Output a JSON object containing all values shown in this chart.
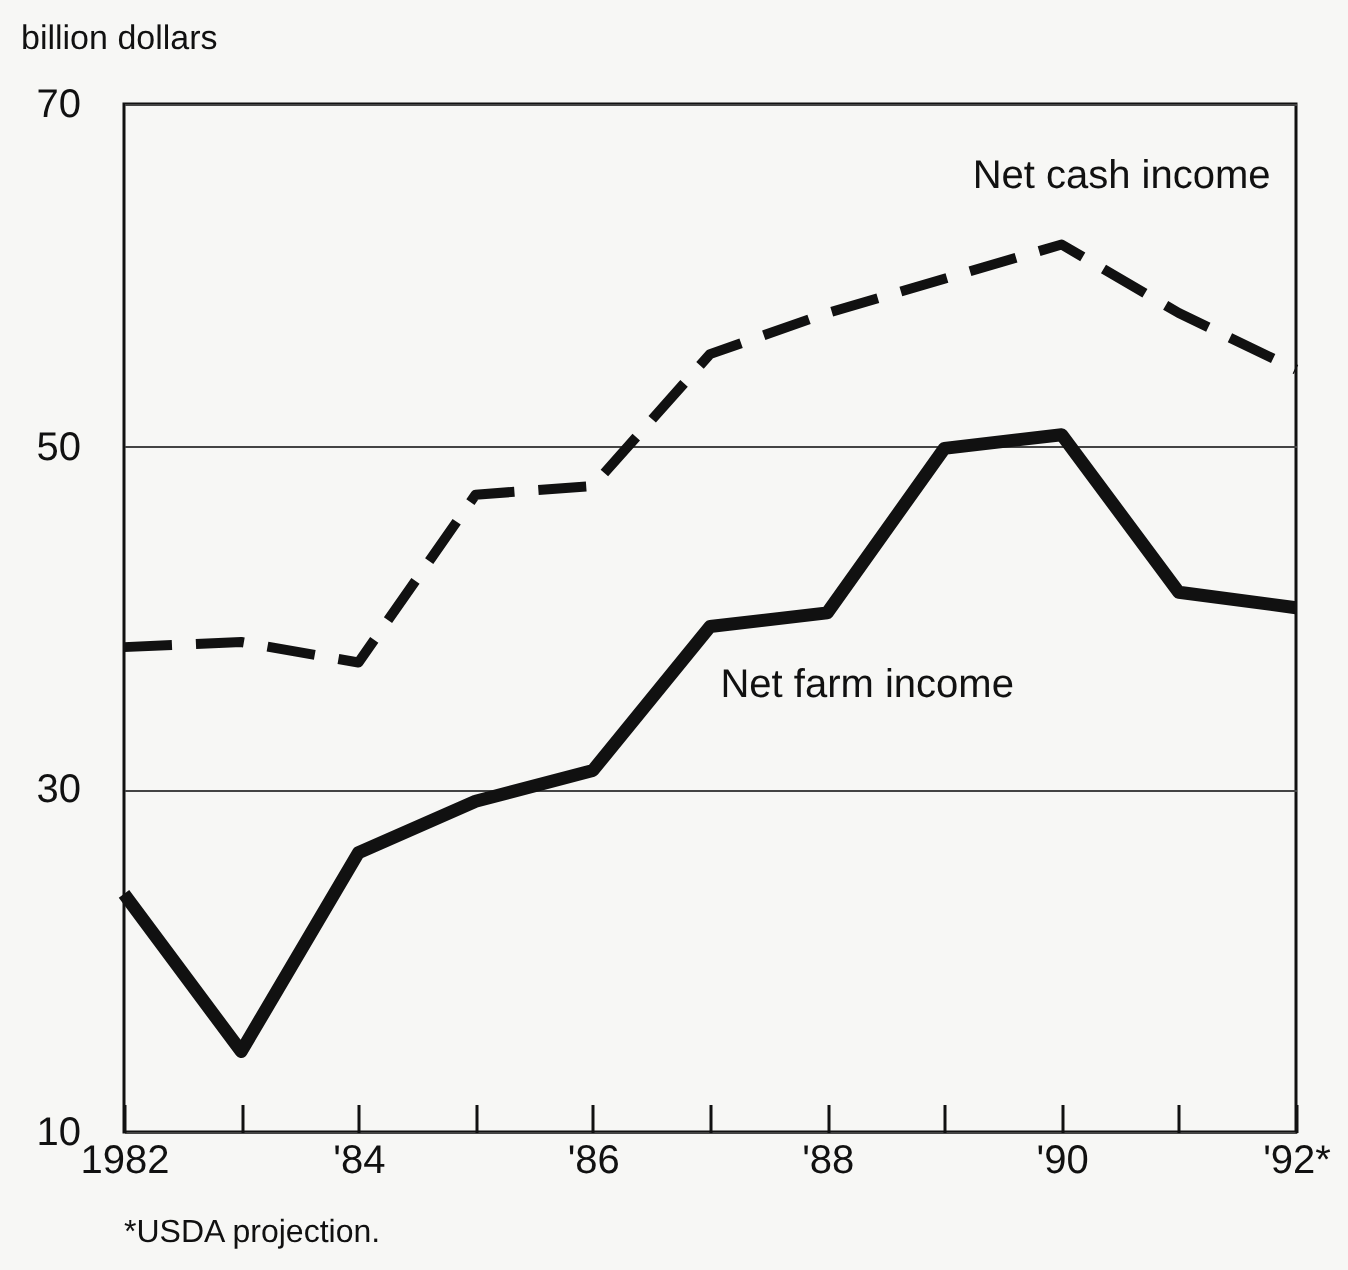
{
  "chart_data": {
    "type": "line",
    "ylabel": "billion dollars",
    "categories": [
      "1982",
      null,
      "'84",
      null,
      "'86",
      null,
      "'88",
      null,
      "'90",
      null,
      "'92*"
    ],
    "series": [
      {
        "name": "Net cash income",
        "color": "#111111",
        "line_style": "dashed",
        "values": [
          38.3,
          38.6,
          37.4,
          47.2,
          47.7,
          55.4,
          57.8,
          59.8,
          61.8,
          57.8,
          54.5
        ]
      },
      {
        "name": "Net farm income",
        "color": "#111111",
        "line_style": "solid",
        "values": [
          23.9,
          14.7,
          26.3,
          29.3,
          31.1,
          39.5,
          40.3,
          49.9,
          50.7,
          41.5,
          40.6
        ]
      }
    ],
    "ylim": [
      10,
      70
    ],
    "yticks": [
      10,
      30,
      50,
      70
    ],
    "grid": "y",
    "legend": false,
    "marker": "none",
    "annotations": [
      "*USDA projection."
    ]
  }
}
